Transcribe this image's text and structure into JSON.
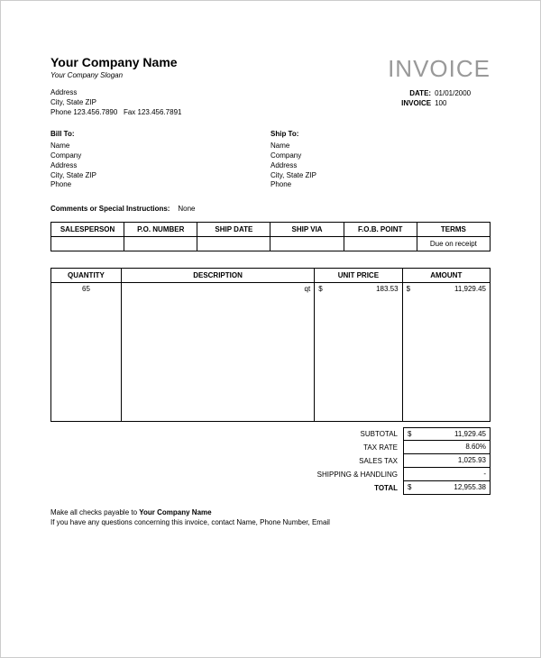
{
  "company": {
    "name": "Your Company Name",
    "slogan": "Your Company Slogan",
    "address": "Address",
    "city_state_zip": "City, State ZIP",
    "phone": "Phone 123.456.7890",
    "fax": "Fax 123.456.7891"
  },
  "invoice": {
    "title": "INVOICE",
    "date_label": "DATE:",
    "date": "01/01/2000",
    "number_label": "INVOICE",
    "number": "100"
  },
  "bill_to": {
    "header": "Bill To:",
    "name": "Name",
    "company": "Company",
    "address": "Address",
    "city_state_zip": "City, State ZIP",
    "phone": "Phone"
  },
  "ship_to": {
    "header": "Ship To:",
    "name": "Name",
    "company": "Company",
    "address": "Address",
    "city_state_zip": "City, State ZIP",
    "phone": "Phone"
  },
  "comments": {
    "label": "Comments or Special Instructions:",
    "value": "None"
  },
  "sales_table": {
    "headers": {
      "sp": "SALESPERSON",
      "po": "P.O. NUMBER",
      "sd": "SHIP DATE",
      "sv": "SHIP VIA",
      "fob": "F.O.B. POINT",
      "terms": "TERMS"
    },
    "row": {
      "sp": "",
      "po": "",
      "sd": "",
      "sv": "",
      "fob": "",
      "terms": "Due on receipt"
    }
  },
  "items_table": {
    "headers": {
      "qty": "QUANTITY",
      "desc": "DESCRIPTION",
      "up": "UNIT PRICE",
      "amt": "AMOUNT"
    },
    "rows": [
      {
        "qty": "65",
        "desc": "qt",
        "up_sym": "$",
        "up": "183.53",
        "amt_sym": "$",
        "amt": "11,929.45"
      }
    ]
  },
  "totals": {
    "subtotal_label": "SUBTOTAL",
    "subtotal_sym": "$",
    "subtotal": "11,929.45",
    "taxrate_label": "TAX RATE",
    "taxrate": "8.60%",
    "salestax_label": "SALES TAX",
    "salestax": "1,025.93",
    "shipping_label": "SHIPPING & HANDLING",
    "shipping": "-",
    "total_label": "TOTAL",
    "total_sym": "$",
    "total": "12,955.38"
  },
  "footer": {
    "line1a": "Make all checks payable to ",
    "line1b": "Your Company Name",
    "line2": "If you have any questions concerning this invoice, contact Name, Phone Number, Email"
  }
}
